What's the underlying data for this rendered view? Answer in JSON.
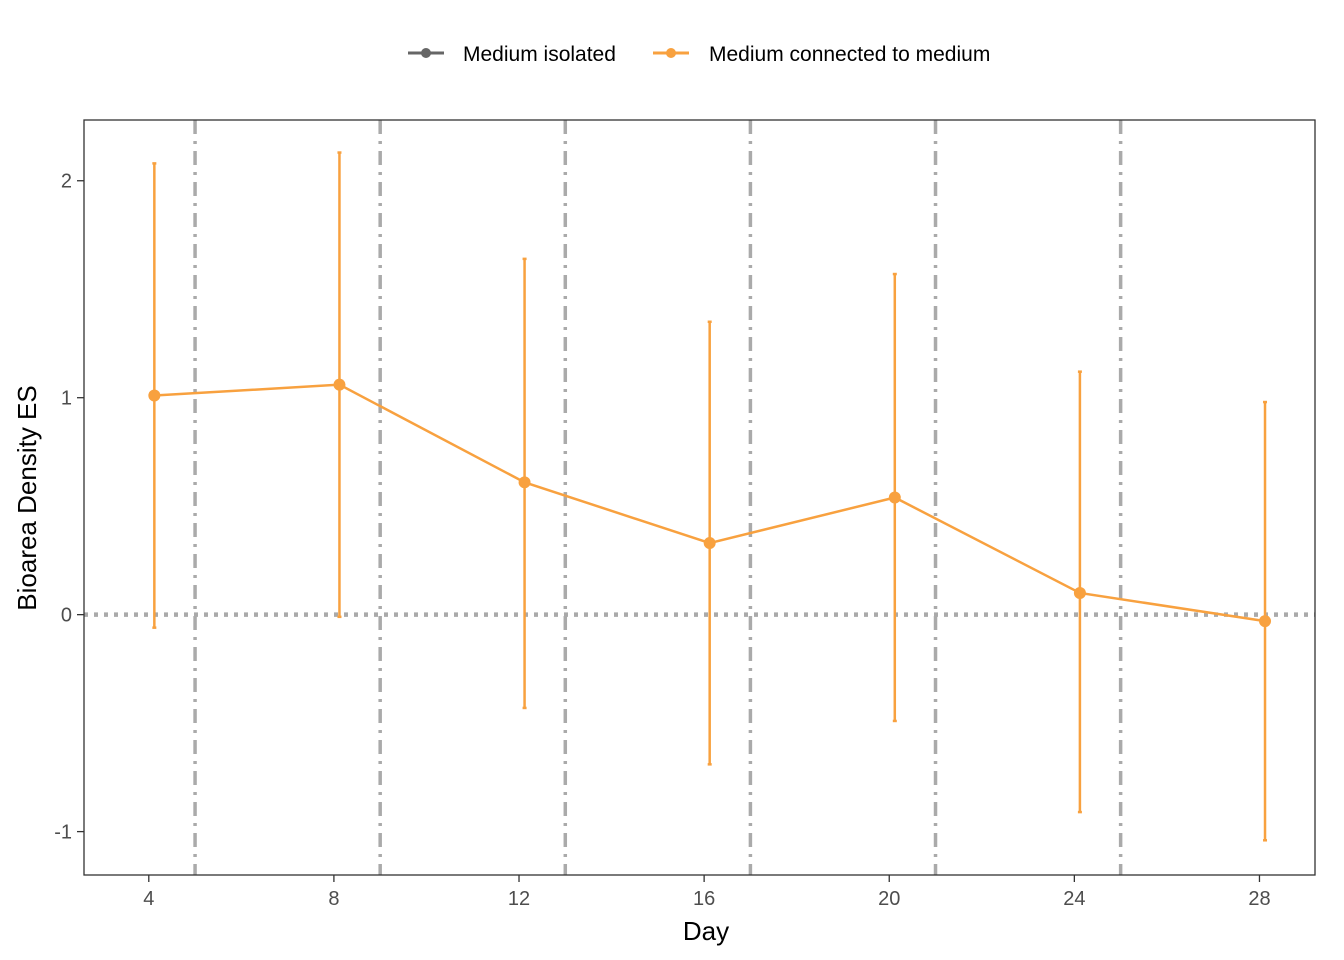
{
  "chart_data": {
    "type": "line",
    "xlabel": "Day",
    "ylabel": "Bioarea Density ES",
    "xlim": [
      2.6,
      29.2
    ],
    "ylim": [
      -1.2,
      2.28
    ],
    "x_ticks": [
      4,
      8,
      12,
      16,
      20,
      24,
      28
    ],
    "x_tick_labels": [
      "4",
      "8",
      "12",
      "16",
      "20",
      "24",
      "28"
    ],
    "y_ticks": [
      -1,
      0,
      1,
      2
    ],
    "y_tick_labels": [
      "-1",
      "0",
      "1",
      "2"
    ],
    "grid": false,
    "legend_position": "top",
    "legend": [
      {
        "name": "Medium isolated",
        "color": "#666666"
      },
      {
        "name": "Medium connected to medium",
        "color": "#F8A13F"
      }
    ],
    "reference_lines": {
      "horizontal_dotted_y": 0,
      "vertical_dashdot_x": [
        5,
        9,
        13,
        17,
        21,
        25
      ],
      "color": "#AAAAAA"
    },
    "series": [
      {
        "name": "Medium connected to medium",
        "color": "#F8A13F",
        "x": [
          4.12,
          8.12,
          12.12,
          16.12,
          20.12,
          24.12,
          28.12
        ],
        "y": [
          1.01,
          1.06,
          0.61,
          0.33,
          0.54,
          0.1,
          -0.03
        ],
        "lower": [
          -0.06,
          -0.01,
          -0.43,
          -0.69,
          -0.49,
          -0.91,
          -1.04
        ],
        "upper": [
          2.08,
          2.13,
          1.64,
          1.35,
          1.57,
          1.12,
          0.98
        ]
      }
    ]
  }
}
